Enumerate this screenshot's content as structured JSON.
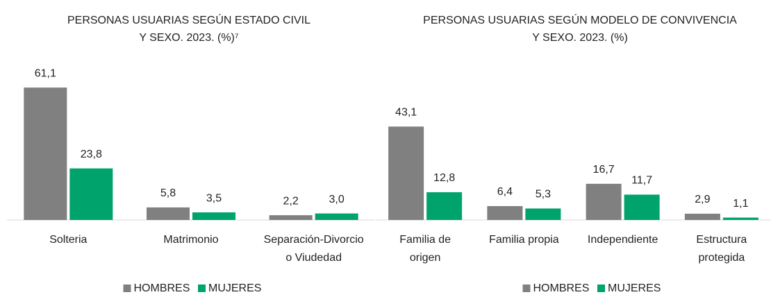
{
  "chart_data": [
    {
      "type": "bar",
      "title": [
        "PERSONAS USUARIAS SEGÚN ESTADO CIVIL",
        "Y SEXO. 2023. (%)⁷"
      ],
      "categories": [
        [
          "Solteria"
        ],
        [
          "Matrimonio"
        ],
        [
          "Separación-Divorcio",
          "o Viudedad"
        ]
      ],
      "series": [
        {
          "name": "HOMBRES",
          "color": "#808080",
          "values": [
            61.1,
            5.8,
            2.2
          ],
          "value_labels": [
            "61,1",
            "5,8",
            "2,2"
          ]
        },
        {
          "name": "MUJERES",
          "color": "#00a36c",
          "values": [
            23.8,
            3.5,
            3.0
          ],
          "value_labels": [
            "23,8",
            "3,5",
            "3,0"
          ]
        }
      ],
      "ylim": [
        0,
        65
      ],
      "legend": "bottom"
    },
    {
      "type": "bar",
      "title": [
        "PERSONAS USUARIAS SEGÚN MODELO DE CONVIVENCIA",
        "Y SEXO. 2023. (%)"
      ],
      "categories": [
        [
          "Familia de",
          "origen"
        ],
        [
          "Familia propia"
        ],
        [
          "Independiente"
        ],
        [
          "Estructura",
          "protegida"
        ]
      ],
      "series": [
        {
          "name": "HOMBRES",
          "color": "#808080",
          "values": [
            43.1,
            6.4,
            16.7,
            2.9
          ],
          "value_labels": [
            "43,1",
            "6,4",
            "16,7",
            "2,9"
          ]
        },
        {
          "name": "MUJERES",
          "color": "#00a36c",
          "values": [
            12.8,
            5.3,
            11.7,
            1.1
          ],
          "value_labels": [
            "12,8",
            "5,3",
            "11,7",
            "1,1"
          ]
        }
      ],
      "ylim": [
        0,
        65
      ],
      "legend": "bottom"
    }
  ]
}
